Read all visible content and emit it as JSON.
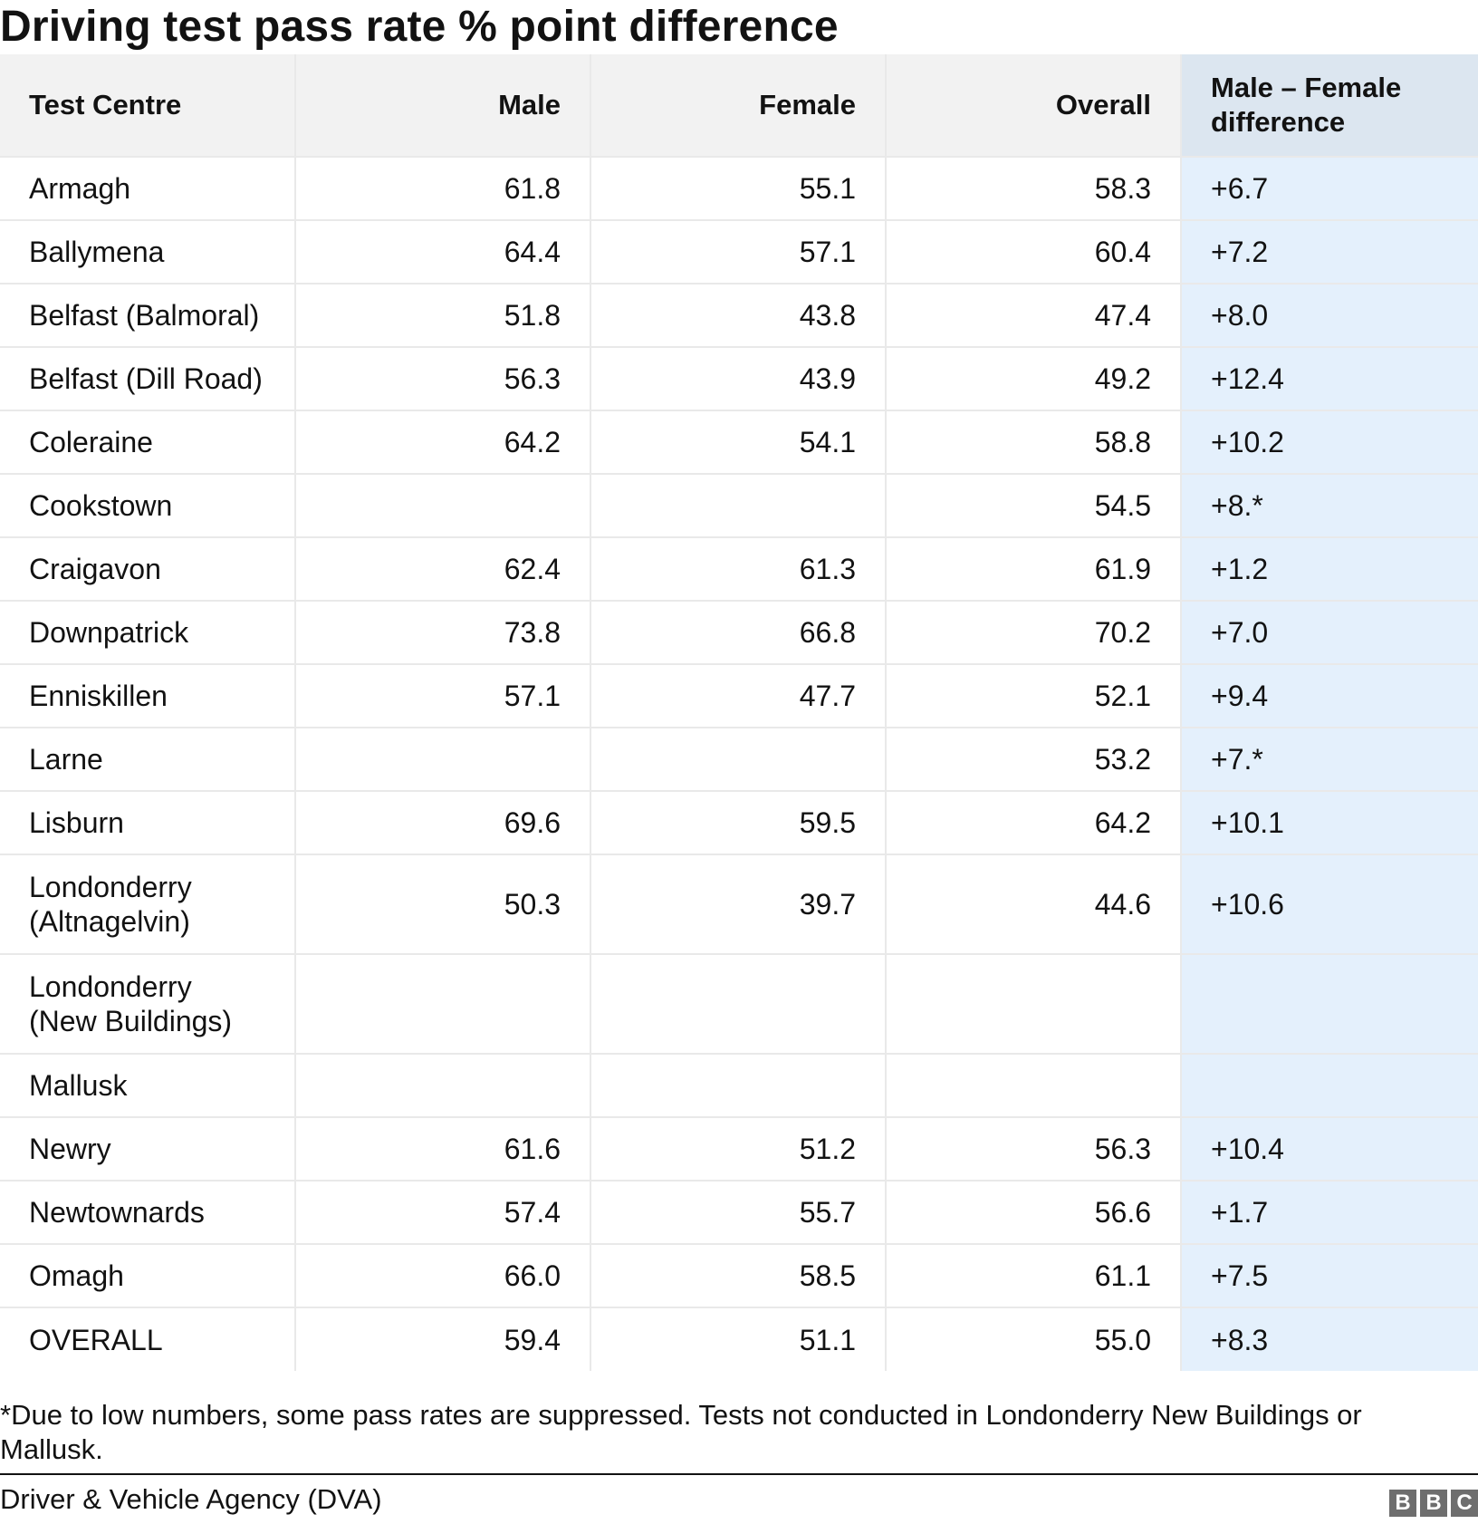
{
  "chart_data": {
    "type": "table",
    "title": "Driving test pass rate % point difference",
    "columns": [
      "Test Centre",
      "Male",
      "Female",
      "Overall",
      "Male – Female difference"
    ],
    "rows": [
      {
        "centre": "Armagh",
        "male": "61.8",
        "female": "55.1",
        "overall": "58.3",
        "diff": "+6.7"
      },
      {
        "centre": "Ballymena",
        "male": "64.4",
        "female": "57.1",
        "overall": "60.4",
        "diff": "+7.2"
      },
      {
        "centre": "Belfast (Balmoral)",
        "male": "51.8",
        "female": "43.8",
        "overall": "47.4",
        "diff": "+8.0"
      },
      {
        "centre": "Belfast (Dill Road)",
        "male": "56.3",
        "female": "43.9",
        "overall": "49.2",
        "diff": "+12.4"
      },
      {
        "centre": "Coleraine",
        "male": "64.2",
        "female": "54.1",
        "overall": "58.8",
        "diff": "+10.2"
      },
      {
        "centre": "Cookstown",
        "male": "",
        "female": "",
        "overall": "54.5",
        "diff": "+8.*"
      },
      {
        "centre": "Craigavon",
        "male": "62.4",
        "female": "61.3",
        "overall": "61.9",
        "diff": "+1.2"
      },
      {
        "centre": "Downpatrick",
        "male": "73.8",
        "female": "66.8",
        "overall": "70.2",
        "diff": "+7.0"
      },
      {
        "centre": "Enniskillen",
        "male": "57.1",
        "female": "47.7",
        "overall": "52.1",
        "diff": "+9.4"
      },
      {
        "centre": "Larne",
        "male": "",
        "female": "",
        "overall": "53.2",
        "diff": "+7.*"
      },
      {
        "centre": "Lisburn",
        "male": "69.6",
        "female": "59.5",
        "overall": "64.2",
        "diff": "+10.1"
      },
      {
        "centre": "Londonderry (Altnagelvin)",
        "male": "50.3",
        "female": "39.7",
        "overall": "44.6",
        "diff": "+10.6"
      },
      {
        "centre": "Londonderry (New Buildings)",
        "male": "",
        "female": "",
        "overall": "",
        "diff": ""
      },
      {
        "centre": "Mallusk",
        "male": "",
        "female": "",
        "overall": "",
        "diff": ""
      },
      {
        "centre": "Newry",
        "male": "61.6",
        "female": "51.2",
        "overall": "56.3",
        "diff": "+10.4"
      },
      {
        "centre": "Newtownards",
        "male": "57.4",
        "female": "55.7",
        "overall": "56.6",
        "diff": "+1.7"
      },
      {
        "centre": "Omagh",
        "male": "66.0",
        "female": "58.5",
        "overall": "61.1",
        "diff": "+7.5"
      },
      {
        "centre": "OVERALL",
        "male": "59.4",
        "female": "51.1",
        "overall": "55.0",
        "diff": "+8.3"
      }
    ]
  },
  "footnote": "*Due to low numbers, some pass rates are suppressed. Tests not conducted in Londonderry New Buildings or Mallusk.",
  "source": "Driver & Vehicle Agency (DVA)",
  "logo": [
    "B",
    "B",
    "C"
  ],
  "colors": {
    "header_bg": "#f2f2f2",
    "diff_header_bg": "#dce6f0",
    "diff_col_bg": "#e4f0fc",
    "grid": "#e9e9e9",
    "text": "#121212"
  }
}
